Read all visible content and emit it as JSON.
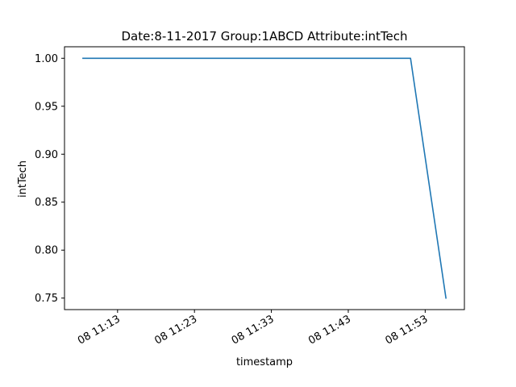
{
  "chart_data": {
    "type": "line",
    "title": "Date:8-11-2017  Group:1ABCD Attribute:intTech",
    "xlabel": "timestamp",
    "ylabel": "intTech",
    "x_unit": "minutes past 11:00 on day 08",
    "xlim": [
      6.1,
      58.1
    ],
    "ylim": [
      0.738,
      1.012
    ],
    "x_ticks": [
      {
        "value": 13,
        "label": "08 11:13"
      },
      {
        "value": 23,
        "label": "08 11:23"
      },
      {
        "value": 33,
        "label": "08 11:33"
      },
      {
        "value": 43,
        "label": "08 11:43"
      },
      {
        "value": 53,
        "label": "08 11:53"
      }
    ],
    "y_ticks": [
      {
        "value": 0.75,
        "label": "0.75"
      },
      {
        "value": 0.8,
        "label": "0.80"
      },
      {
        "value": 0.85,
        "label": "0.85"
      },
      {
        "value": 0.9,
        "label": "0.90"
      },
      {
        "value": 0.95,
        "label": "0.95"
      },
      {
        "value": 1.0,
        "label": "1.00"
      }
    ],
    "grid": false,
    "legend": "none",
    "series": [
      {
        "color": "#1f77b4",
        "x": [
          8.5,
          51.1,
          55.7
        ],
        "y": [
          1.0,
          1.0,
          0.75
        ]
      }
    ]
  }
}
